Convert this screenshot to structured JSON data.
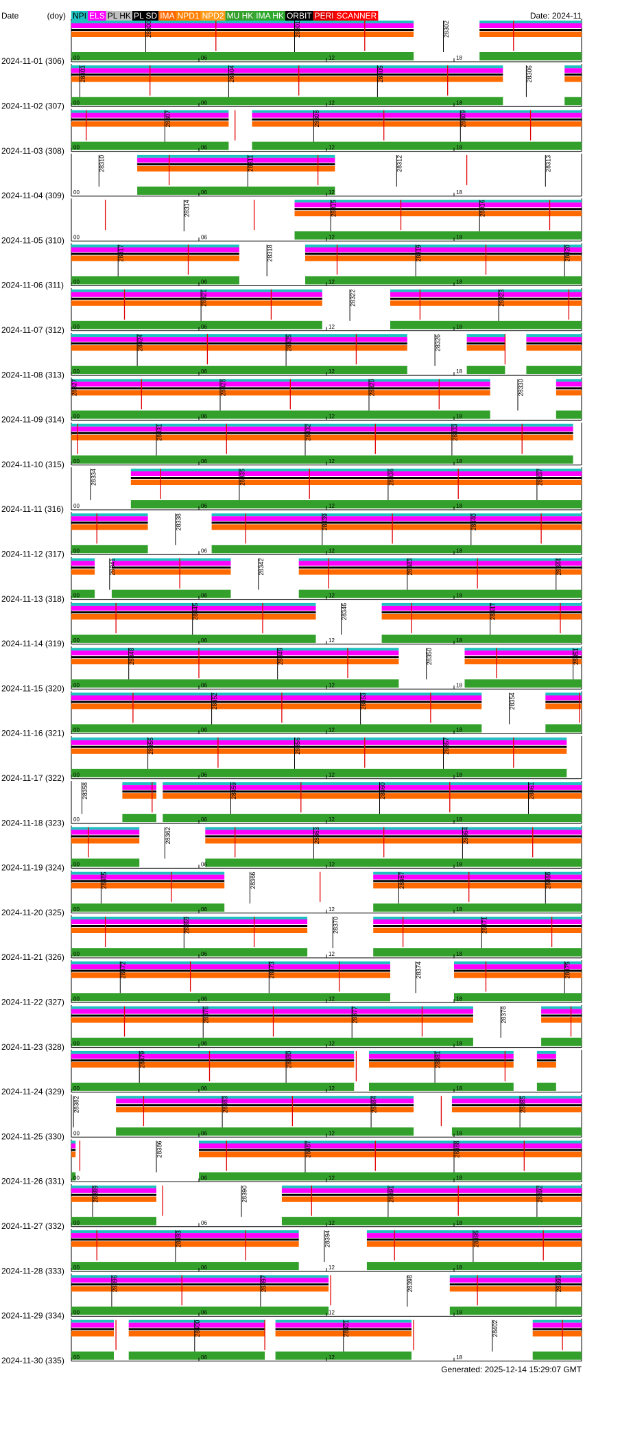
{
  "chart_data": {
    "type": "timeline",
    "header": {
      "date": "Date",
      "doy": "(doy)",
      "month": "Date: 2024-11"
    },
    "footer": "Generated: 2025-12-14 15:29:07 GMT",
    "legend": [
      {
        "name": "NPI",
        "color": "#20c0c0",
        "text": "#000"
      },
      {
        "name": "ELS",
        "color": "#ff00ff",
        "text": "#fff"
      },
      {
        "name": "PL HK",
        "color": "#c0c0c0",
        "text": "#000"
      },
      {
        "name": "PL SD",
        "color": "#000000",
        "text": "#fff"
      },
      {
        "name": "IMA",
        "color": "#ff6a00",
        "text": "#fff"
      },
      {
        "name": "NPD1",
        "color": "#ff8000",
        "text": "#fff"
      },
      {
        "name": "NPD2",
        "color": "#ff9a1a",
        "text": "#fff"
      },
      {
        "name": "MU HK",
        "color": "#33a02c",
        "text": "#fff"
      },
      {
        "name": "IMA HK",
        "color": "#2ca82c",
        "text": "#fff"
      },
      {
        "name": "ORBIT",
        "color": "#000000",
        "text": "#fff"
      },
      {
        "name": "PERI",
        "color": "#e00000",
        "text": "#fff"
      },
      {
        "name": "SCANNER",
        "color": "#ff0000",
        "text": "#fff"
      }
    ],
    "xlim": [
      0,
      24
    ],
    "xticks": [
      {
        "value": 0,
        "label": "00"
      },
      {
        "value": 6,
        "label": "06"
      },
      12,
      18
    ],
    "days": [
      {
        "label": "2024-11-01 (306)",
        "on": [
          [
            0,
            16.1
          ],
          [
            19.2,
            24
          ]
        ],
        "peri": [
          6.8,
          13.8,
          20.8
        ],
        "orbits": [
          {
            "label": "28300",
            "hour": 3.5
          },
          {
            "label": "28301",
            "hour": 10.5
          },
          {
            "label": "28302",
            "hour": 17.5
          }
        ]
      },
      {
        "label": "2024-11-02 (307)",
        "on": [
          [
            0,
            20.3
          ],
          [
            23.2,
            24
          ]
        ],
        "peri": [
          3.7,
          10.7,
          17.7
        ],
        "orbits": [
          {
            "label": "28303",
            "hour": 0.4
          },
          {
            "label": "28304",
            "hour": 7.4
          },
          {
            "label": "28305",
            "hour": 14.4
          },
          {
            "label": "28306",
            "hour": 21.4
          }
        ]
      },
      {
        "label": "2024-11-03 (308)",
        "on": [
          [
            0,
            7.4
          ],
          [
            8.5,
            24
          ]
        ],
        "peri": [
          0.7,
          7.7,
          14.7,
          21.6
        ],
        "orbits": [
          {
            "label": "28307",
            "hour": 4.4
          },
          {
            "label": "28308",
            "hour": 11.4
          },
          {
            "label": "28309",
            "hour": 18.3
          }
        ]
      },
      {
        "label": "2024-11-04 (309)",
        "on": [
          [
            3.1,
            12.4
          ]
        ],
        "peri": [
          4.6,
          11.6,
          18.6
        ],
        "orbits": [
          {
            "label": "28310",
            "hour": 1.3
          },
          {
            "label": "28311",
            "hour": 8.3
          },
          {
            "label": "28312",
            "hour": 15.3
          },
          {
            "label": "28313",
            "hour": 22.3
          }
        ]
      },
      {
        "label": "2024-11-05 (310)",
        "on": [
          [
            10.5,
            24
          ]
        ],
        "peri": [
          1.6,
          8.6,
          15.5,
          22.5
        ],
        "orbits": [
          {
            "label": "28314",
            "hour": 5.3
          },
          {
            "label": "28315",
            "hour": 12.2
          },
          {
            "label": "28316",
            "hour": 19.2
          }
        ]
      },
      {
        "label": "2024-11-06 (311)",
        "on": [
          [
            0,
            7.9
          ],
          [
            11,
            24
          ]
        ],
        "peri": [
          5.5,
          12.5,
          19.5
        ],
        "orbits": [
          {
            "label": "28317",
            "hour": 2.2
          },
          {
            "label": "28318",
            "hour": 9.2
          },
          {
            "label": "28319",
            "hour": 16.2
          },
          {
            "label": "28320",
            "hour": 23.2
          }
        ]
      },
      {
        "label": "2024-11-07 (312)",
        "on": [
          [
            0,
            11.8
          ],
          [
            15,
            24
          ]
        ],
        "peri": [
          2.5,
          9.4,
          16.4,
          23.4
        ],
        "orbits": [
          {
            "label": "28321",
            "hour": 6.1
          },
          {
            "label": "28322",
            "hour": 13.1
          },
          {
            "label": "28323",
            "hour": 20.1
          }
        ]
      },
      {
        "label": "2024-11-08 (313)",
        "on": [
          [
            0,
            15.8
          ],
          [
            18.6,
            20.4
          ],
          [
            21.4,
            24
          ]
        ],
        "peri": [
          6.4,
          13.4,
          20.4
        ],
        "orbits": [
          {
            "label": "28324",
            "hour": 3.1
          },
          {
            "label": "28325",
            "hour": 10.1
          },
          {
            "label": "28326",
            "hour": 17.1
          }
        ]
      },
      {
        "label": "2024-11-09 (314)",
        "on": [
          [
            0,
            19.7
          ],
          [
            22.8,
            24
          ]
        ],
        "peri": [
          3.3,
          10.3,
          17.3
        ],
        "orbits": [
          {
            "label": "28327",
            "hour": 0
          },
          {
            "label": "28328",
            "hour": 7
          },
          {
            "label": "28329",
            "hour": 14
          },
          {
            "label": "28330",
            "hour": 21
          }
        ]
      },
      {
        "label": "2024-11-10 (315)",
        "on": [
          [
            0,
            23.6
          ]
        ],
        "peri": [
          0.3,
          7.3,
          14.3,
          21.2
        ],
        "orbits": [
          {
            "label": "28331",
            "hour": 4
          },
          {
            "label": "28332",
            "hour": 11
          },
          {
            "label": "28333",
            "hour": 17.9
          }
        ]
      },
      {
        "label": "2024-11-11 (316)",
        "on": [
          [
            2.8,
            24
          ]
        ],
        "peri": [
          4.2,
          11.2,
          18.2
        ],
        "orbits": [
          {
            "label": "28334",
            "hour": 0.9
          },
          {
            "label": "28335",
            "hour": 7.9
          },
          {
            "label": "28336",
            "hour": 14.9
          },
          {
            "label": "28337",
            "hour": 21.9
          }
        ]
      },
      {
        "label": "2024-11-12 (317)",
        "on": [
          [
            0,
            3.6
          ],
          [
            6.6,
            24
          ]
        ],
        "peri": [
          1.2,
          8.2,
          15.1,
          22.1
        ],
        "orbits": [
          {
            "label": "28338",
            "hour": 4.9
          },
          {
            "label": "28339",
            "hour": 11.8
          },
          {
            "label": "28340",
            "hour": 18.8
          }
        ]
      },
      {
        "label": "2024-11-13 (318)",
        "on": [
          [
            0,
            1.1
          ],
          [
            1.9,
            7.5
          ],
          [
            10.7,
            24
          ]
        ],
        "peri": [
          5.1,
          12.1,
          19.1
        ],
        "orbits": [
          {
            "label": "28341",
            "hour": 1.8
          },
          {
            "label": "28342",
            "hour": 8.8
          },
          {
            "label": "28343",
            "hour": 15.8
          },
          {
            "label": "28344",
            "hour": 22.8
          }
        ]
      },
      {
        "label": "2024-11-14 (319)",
        "on": [
          [
            0,
            11.5
          ],
          [
            14.6,
            24
          ]
        ],
        "peri": [
          2.1,
          9,
          16,
          23
        ],
        "orbits": [
          {
            "label": "28345",
            "hour": 5.7
          },
          {
            "label": "28346",
            "hour": 12.7
          },
          {
            "label": "28347",
            "hour": 19.7
          }
        ]
      },
      {
        "label": "2024-11-15 (320)",
        "on": [
          [
            0,
            15.4
          ],
          [
            18.5,
            24
          ]
        ],
        "peri": [
          6,
          13,
          20
        ],
        "orbits": [
          {
            "label": "28348",
            "hour": 2.7
          },
          {
            "label": "28349",
            "hour": 9.7
          },
          {
            "label": "28350",
            "hour": 16.7
          },
          {
            "label": "28351",
            "hour": 23.6
          }
        ]
      },
      {
        "label": "2024-11-16 (321)",
        "on": [
          [
            0,
            19.3
          ],
          [
            22.3,
            24
          ]
        ],
        "peri": [
          2.9,
          9.9,
          16.9,
          23.9
        ],
        "orbits": [
          {
            "label": "28352",
            "hour": 6.6
          },
          {
            "label": "28353",
            "hour": 13.6
          },
          {
            "label": "28354",
            "hour": 20.6
          }
        ]
      },
      {
        "label": "2024-11-17 (322)",
        "on": [
          [
            0,
            23.3
          ]
        ],
        "peri": [
          6.9,
          13.8,
          20.8
        ],
        "orbits": [
          {
            "label": "28355",
            "hour": 3.6
          },
          {
            "label": "28356",
            "hour": 10.5
          },
          {
            "label": "28357",
            "hour": 17.5
          }
        ]
      },
      {
        "label": "2024-11-18 (323)",
        "on": [
          [
            2.4,
            4
          ],
          [
            4.3,
            24
          ]
        ],
        "peri": [
          3.8,
          10.8,
          17.8
        ],
        "orbits": [
          {
            "label": "28358",
            "hour": 0.5
          },
          {
            "label": "28359",
            "hour": 7.5
          },
          {
            "label": "28360",
            "hour": 14.5
          },
          {
            "label": "28361",
            "hour": 21.5
          }
        ]
      },
      {
        "label": "2024-11-19 (324)",
        "on": [
          [
            0,
            3.2
          ],
          [
            6.3,
            24
          ]
        ],
        "peri": [
          0.8,
          7.7,
          14.7,
          21.7
        ],
        "orbits": [
          {
            "label": "28362",
            "hour": 4.4
          },
          {
            "label": "28363",
            "hour": 11.4
          },
          {
            "label": "28364",
            "hour": 18.4
          }
        ]
      },
      {
        "label": "2024-11-20 (325)",
        "on": [
          [
            0,
            7.2
          ],
          [
            14.2,
            24
          ]
        ],
        "peri": [
          4.7,
          11.7,
          18.7
        ],
        "orbits": [
          {
            "label": "28365",
            "hour": 1.4
          },
          {
            "label": "28366",
            "hour": 8.4
          },
          {
            "label": "28367",
            "hour": 15.4
          },
          {
            "label": "28368",
            "hour": 22.3
          }
        ]
      },
      {
        "label": "2024-11-21 (326)",
        "on": [
          [
            0,
            11.1
          ],
          [
            14.2,
            24
          ]
        ],
        "peri": [
          1.6,
          8.6,
          15.6,
          22.6
        ],
        "orbits": [
          {
            "label": "28369",
            "hour": 5.3
          },
          {
            "label": "28370",
            "hour": 12.3
          },
          {
            "label": "28371",
            "hour": 19.3
          }
        ]
      },
      {
        "label": "2024-11-22 (327)",
        "on": [
          [
            0,
            15
          ],
          [
            18,
            24
          ]
        ],
        "peri": [
          5.6,
          12.6,
          19.5
        ],
        "orbits": [
          {
            "label": "28372",
            "hour": 2.3
          },
          {
            "label": "28373",
            "hour": 9.3
          },
          {
            "label": "28374",
            "hour": 16.2
          },
          {
            "label": "28375",
            "hour": 23.2
          }
        ]
      },
      {
        "label": "2024-11-23 (328)",
        "on": [
          [
            0,
            18.9
          ],
          [
            22.1,
            24
          ]
        ],
        "peri": [
          2.5,
          9.5,
          16.5,
          23.5
        ],
        "orbits": [
          {
            "label": "28376",
            "hour": 6.2
          },
          {
            "label": "28377",
            "hour": 13.2
          },
          {
            "label": "28378",
            "hour": 20.2
          }
        ]
      },
      {
        "label": "2024-11-24 (329)",
        "on": [
          [
            0,
            13.3
          ],
          [
            14,
            20.8
          ],
          [
            21.9,
            22.8
          ]
        ],
        "peri": [
          6.5,
          13.4,
          20.4
        ],
        "orbits": [
          {
            "label": "28379",
            "hour": 3.2
          },
          {
            "label": "28380",
            "hour": 10.1
          },
          {
            "label": "28381",
            "hour": 17.1
          }
        ]
      },
      {
        "label": "2024-11-25 (330)",
        "on": [
          [
            2.1,
            16.1
          ],
          [
            17.9,
            24
          ]
        ],
        "peri": [
          3.4,
          10.4,
          17.4
        ],
        "orbits": [
          {
            "label": "28382",
            "hour": 0.1
          },
          {
            "label": "28383",
            "hour": 7.1
          },
          {
            "label": "28384",
            "hour": 14.1
          },
          {
            "label": "28385",
            "hour": 21.1
          }
        ]
      },
      {
        "label": "2024-11-26 (331)",
        "on": [
          [
            0,
            0.2
          ],
          [
            6,
            24
          ]
        ],
        "peri": [
          0.4,
          7.3,
          14.3,
          21.3
        ],
        "orbits": [
          {
            "label": "28386",
            "hour": 4
          },
          {
            "label": "28387",
            "hour": 11
          },
          {
            "label": "28388",
            "hour": 18
          }
        ]
      },
      {
        "label": "2024-11-27 (332)",
        "on": [
          [
            0,
            4
          ],
          [
            9.9,
            24
          ]
        ],
        "peri": [
          4.3,
          11.3,
          18.2
        ],
        "orbits": [
          {
            "label": "28389",
            "hour": 1
          },
          {
            "label": "28390",
            "hour": 8
          },
          {
            "label": "28391",
            "hour": 14.9
          },
          {
            "label": "28392",
            "hour": 21.9
          }
        ]
      },
      {
        "label": "2024-11-28 (333)",
        "on": [
          [
            0,
            10.7
          ],
          [
            13.9,
            24
          ]
        ],
        "peri": [
          1.2,
          8.2,
          15.2,
          22.2
        ],
        "orbits": [
          {
            "label": "28393",
            "hour": 4.9
          },
          {
            "label": "28394",
            "hour": 11.9
          },
          {
            "label": "28395",
            "hour": 18.9
          }
        ]
      },
      {
        "label": "2024-11-29 (334)",
        "on": [
          [
            0,
            12.1
          ],
          [
            17.8,
            24
          ]
        ],
        "peri": [
          5.2,
          12.2,
          19.1
        ],
        "orbits": [
          {
            "label": "28396",
            "hour": 1.9
          },
          {
            "label": "28397",
            "hour": 8.9
          },
          {
            "label": "28398",
            "hour": 15.8
          },
          {
            "label": "28399",
            "hour": 22.8
          }
        ]
      },
      {
        "label": "2024-11-30 (335)",
        "on": [
          [
            0,
            2
          ],
          [
            2.7,
            9.1
          ],
          [
            9.6,
            16
          ],
          [
            21.7,
            24
          ]
        ],
        "peri": [
          2.1,
          9.1,
          16.1,
          23.1
        ],
        "orbits": [
          {
            "label": "28400",
            "hour": 5.8
          },
          {
            "label": "28401",
            "hour": 12.8
          },
          {
            "label": "28402",
            "hour": 19.8
          }
        ]
      }
    ]
  }
}
